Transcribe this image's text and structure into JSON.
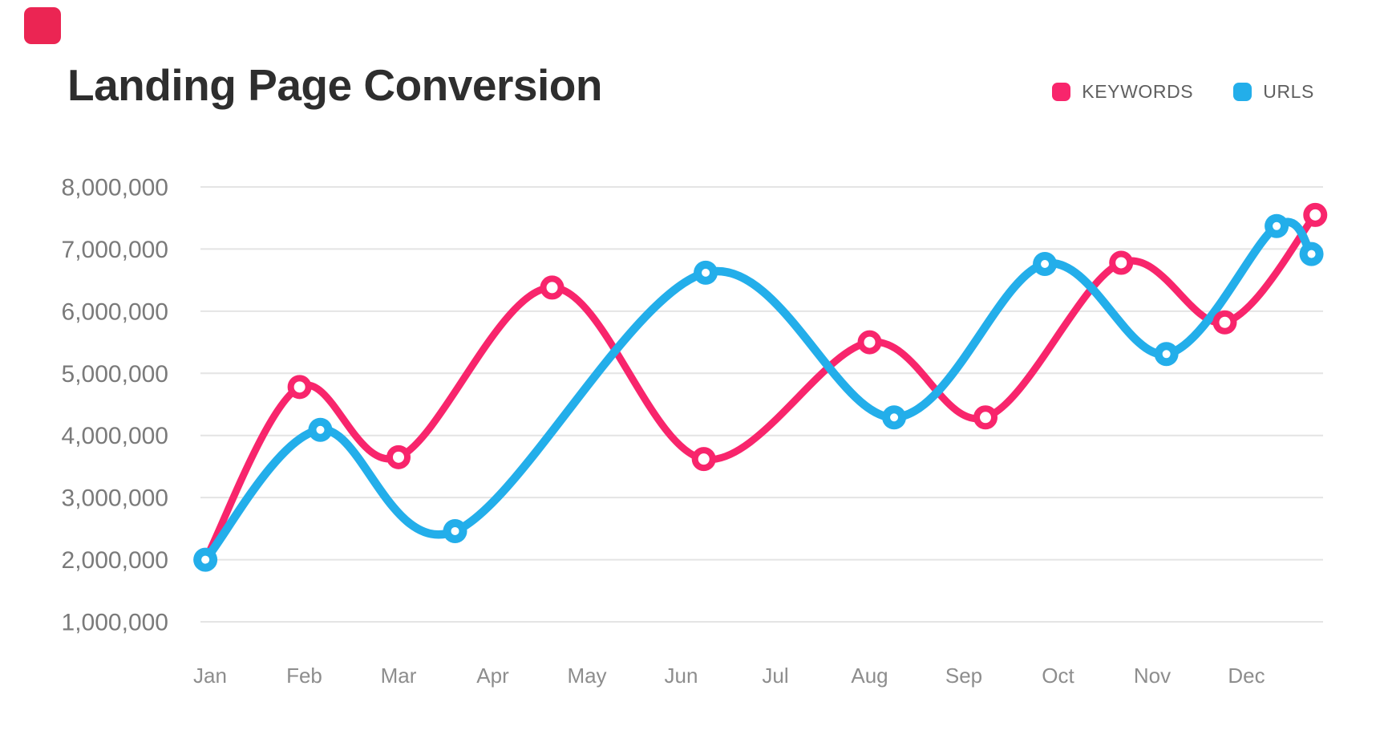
{
  "page": {
    "background": "#ffffff"
  },
  "brand_mark": {
    "color": "#EB2553"
  },
  "header": {
    "title": "Landing Page Conversion"
  },
  "legend": [
    {
      "label": "KEYWORDS",
      "color": "#F8256C"
    },
    {
      "label": "URLS",
      "color": "#23AEEA"
    }
  ],
  "chart_data": {
    "type": "line",
    "title": "Landing Page Conversion",
    "style": "smooth curved lines with circular markers at peaks and valleys",
    "grid": "horizontal gridlines only",
    "legend_position": "top-right",
    "x_unit": "month index, 1 = Jan, 12 = Dec, fractional values fall between month ticks",
    "x_categories": [
      "Jan",
      "Feb",
      "Mar",
      "Apr",
      "May",
      "Jun",
      "Jul",
      "Aug",
      "Sep",
      "Oct",
      "Nov",
      "Dec"
    ],
    "y_ticks": [
      {
        "label": "8,000,000",
        "value": 8000000
      },
      {
        "label": "7,000,000",
        "value": 7000000
      },
      {
        "label": "6,000,000",
        "value": 6000000
      },
      {
        "label": "5,000,000",
        "value": 5000000
      },
      {
        "label": "4,000,000",
        "value": 4000000
      },
      {
        "label": "3,000,000",
        "value": 3000000
      },
      {
        "label": "2,000,000",
        "value": 2000000
      },
      {
        "label": "1,000,000",
        "value": 1000000
      }
    ],
    "ylim": [
      1000000,
      8000000
    ],
    "series": [
      {
        "name": "KEYWORDS",
        "color": "#F8256C",
        "marker": "ring",
        "points": [
          {
            "x": 0.95,
            "value": 2000000
          },
          {
            "x": 1.95,
            "value": 4780000
          },
          {
            "x": 3.0,
            "value": 3650000
          },
          {
            "x": 4.63,
            "value": 6380000
          },
          {
            "x": 6.24,
            "value": 3620000
          },
          {
            "x": 8.0,
            "value": 5500000
          },
          {
            "x": 9.23,
            "value": 4290000
          },
          {
            "x": 10.67,
            "value": 6780000
          },
          {
            "x": 11.77,
            "value": 5820000
          },
          {
            "x": 12.73,
            "value": 7550000
          }
        ]
      },
      {
        "name": "URLS",
        "color": "#23AEEA",
        "marker": "dot",
        "points": [
          {
            "x": 0.95,
            "value": 2000000
          },
          {
            "x": 2.17,
            "value": 4090000
          },
          {
            "x": 3.6,
            "value": 2460000
          },
          {
            "x": 6.26,
            "value": 6620000
          },
          {
            "x": 8.26,
            "value": 4290000
          },
          {
            "x": 9.86,
            "value": 6760000
          },
          {
            "x": 11.15,
            "value": 5310000
          },
          {
            "x": 12.32,
            "value": 7370000
          },
          {
            "x": 12.69,
            "value": 6920000
          }
        ]
      }
    ]
  }
}
